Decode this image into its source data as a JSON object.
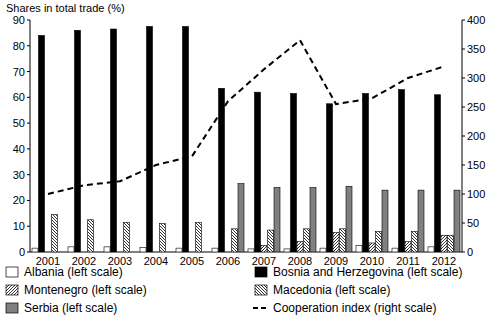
{
  "chart_data": {
    "type": "bar",
    "y_label": "Shares in total trade (%)",
    "categories": [
      "2001",
      "2002",
      "2003",
      "2004",
      "2005",
      "2006",
      "2007",
      "2008",
      "2009",
      "2010",
      "2011",
      "2012"
    ],
    "ylim": [
      0,
      90
    ],
    "yticks": [
      0,
      10,
      20,
      30,
      40,
      50,
      60,
      70,
      80,
      90
    ],
    "y2lim": [
      0,
      400
    ],
    "y2ticks": [
      0,
      50,
      100,
      150,
      200,
      250,
      300,
      350,
      400
    ],
    "legend": "bottom",
    "series": [
      {
        "name": "Albania (left scale)",
        "type": "bar",
        "color": "#ffffff",
        "line_style": "solid",
        "values": [
          1.5,
          2,
          2,
          1.8,
          1.5,
          1.5,
          1.2,
          1.2,
          1.5,
          2.5,
          1.5,
          2
        ]
      },
      {
        "name": "Bosnia and Herzegovina (left scale)",
        "type": "bar",
        "color": "#000000",
        "line_style": "solid",
        "values": [
          84,
          86,
          86.5,
          87.5,
          87.5,
          63.5,
          62,
          61.5,
          57.5,
          61.5,
          63,
          61
        ]
      },
      {
        "name": "Montenegro (left scale)",
        "type": "bar",
        "color": "#000000",
        "line_style": "hatch_right",
        "values": [
          null,
          null,
          null,
          null,
          null,
          null,
          2.5,
          4,
          7.5,
          3.5,
          4,
          6.5
        ]
      },
      {
        "name": "Macedonia (left scale)",
        "type": "bar",
        "color": "#000000",
        "line_style": "hatch_left",
        "values": [
          14.5,
          12.5,
          11.5,
          11,
          11.5,
          9,
          8.5,
          9,
          9,
          8,
          8,
          6.5
        ]
      },
      {
        "name": "Serbia  (left scale)",
        "type": "bar",
        "color": "#808080",
        "line_style": "solid",
        "values": [
          null,
          null,
          null,
          null,
          null,
          26.5,
          25,
          25,
          25.5,
          24,
          24,
          24
        ]
      },
      {
        "name": "Cooperation index (right scale)",
        "type": "line",
        "axis": "y2",
        "color": "#000000",
        "line_style": "dashed",
        "values": [
          100,
          115,
          122,
          150,
          165,
          260,
          315,
          365,
          255,
          265,
          300,
          320
        ]
      }
    ]
  }
}
